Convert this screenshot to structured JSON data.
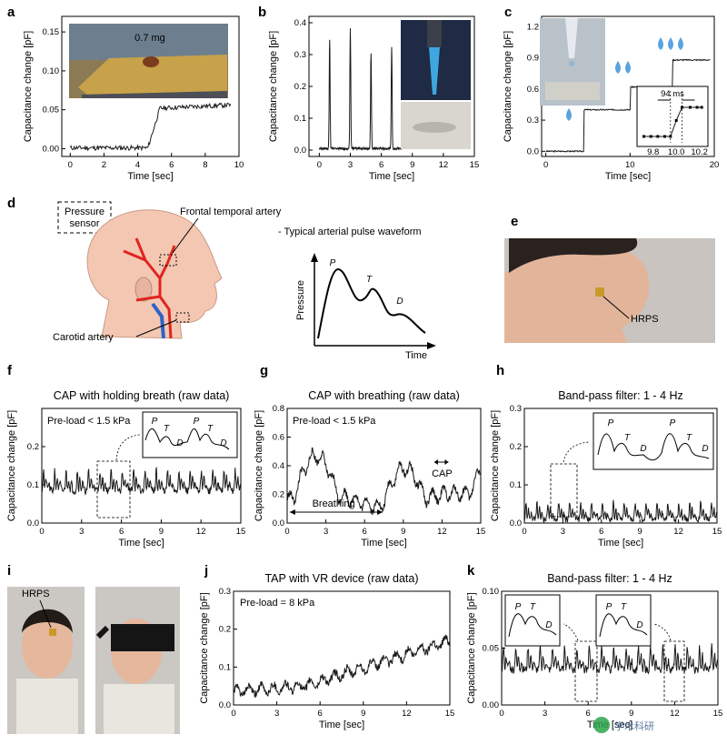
{
  "panels": {
    "a": {
      "label": "a",
      "photo_caption": "0.7 mg"
    },
    "b": {
      "label": "b"
    },
    "c": {
      "label": "c",
      "inset_caption": "94 ms"
    },
    "d": {
      "label": "d",
      "sensor_label": "Pressure\nsensor",
      "artery_top": "Frontal temporal artery",
      "artery_bottom": "Carotid artery",
      "waveform_title": "- Typical arterial pulse waveform",
      "peak_p": "P",
      "peak_t": "T",
      "peak_d": "D",
      "ylabel": "Pressure",
      "xlabel": "Time"
    },
    "e": {
      "label": "e",
      "sensor_label": "HRPS"
    },
    "f": {
      "label": "f"
    },
    "g": {
      "label": "g"
    },
    "h": {
      "label": "h"
    },
    "i": {
      "label": "i",
      "sensor_label": "HRPS"
    },
    "j": {
      "label": "j"
    },
    "k": {
      "label": "k"
    }
  },
  "watermark": "学术科研",
  "colors": {
    "trace": "#1a1a1a",
    "artery_red": "#e0241d",
    "vein_blue": "#2f63c8",
    "skin": "#f4c7b3"
  },
  "chart_data": [
    {
      "id": "a",
      "type": "line",
      "xlabel": "Time [sec]",
      "ylabel": "Capacitance change [pF]",
      "xlim": [
        -0.5,
        10
      ],
      "ylim": [
        -0.01,
        0.17
      ],
      "xticks": [
        "0",
        "2",
        "4",
        "6",
        "8",
        "10"
      ],
      "yticks": [
        "0.00",
        "0.05",
        "0.10",
        "0.15"
      ],
      "x": [
        0,
        1,
        2,
        3,
        4,
        4.6,
        4.9,
        5.2,
        5.6,
        6,
        7,
        8,
        9,
        9.5
      ],
      "y": [
        0,
        0,
        0.001,
        0,
        0.002,
        0.003,
        0.03,
        0.05,
        0.053,
        0.055,
        0.056,
        0.057,
        0.058,
        0.058
      ]
    },
    {
      "id": "b",
      "type": "line",
      "xlabel": "Time [sec]",
      "ylabel": "Capacitance change [pF]",
      "xlim": [
        -1,
        15
      ],
      "ylim": [
        -0.02,
        0.42
      ],
      "xticks": [
        "0",
        "3",
        "6",
        "9",
        "12",
        "15"
      ],
      "yticks": [
        "0.0",
        "0.1",
        "0.2",
        "0.3",
        "0.4"
      ],
      "x": [
        0,
        0.8,
        1,
        1.2,
        2.8,
        3,
        3.2,
        4.8,
        5,
        5.2,
        6.8,
        7,
        7.2,
        8
      ],
      "y": [
        0,
        0,
        0.34,
        0.01,
        0,
        0.38,
        0.01,
        0,
        0.3,
        0.01,
        0,
        0.32,
        0.01,
        0
      ]
    },
    {
      "id": "c",
      "type": "line",
      "xlabel": "Time [sec]",
      "ylabel": "Capacitance change [pF]",
      "xlim": [
        -0.5,
        20
      ],
      "ylim": [
        -0.05,
        1.3
      ],
      "xticks": [
        "0",
        "10",
        "20"
      ],
      "yticks": [
        "0.0",
        "0.3",
        "0.6",
        "0.9",
        "1.2"
      ],
      "x": [
        0,
        4.4,
        4.5,
        10,
        10.1,
        15,
        15.1,
        19.5
      ],
      "y": [
        0,
        0,
        0.4,
        0.4,
        0.62,
        0.62,
        0.88,
        0.88
      ],
      "inset": {
        "xticks": [
          "9.8",
          "10.0",
          "10.2"
        ],
        "x": [
          9.72,
          9.78,
          9.84,
          9.9,
          9.95,
          10.0,
          10.05,
          10.12,
          10.18,
          10.22
        ],
        "y": [
          0,
          0,
          0,
          0,
          0,
          0.55,
          1,
          1,
          1,
          1
        ]
      }
    },
    {
      "id": "f",
      "type": "line",
      "title": "CAP with holding breath (raw data)",
      "annotation": "Pre-load < 1.5 kPa",
      "xlabel": "Time [sec]",
      "ylabel": "Capacitance change [pF]",
      "xlim": [
        0,
        15
      ],
      "ylim": [
        0,
        0.3
      ],
      "xticks": [
        "0",
        "3",
        "6",
        "9",
        "12",
        "15"
      ],
      "yticks": [
        "0.0",
        "0.1",
        "0.2"
      ],
      "pulse": {
        "mean": 0.11,
        "amp": 0.055,
        "period": 0.85
      }
    },
    {
      "id": "g",
      "type": "line",
      "title": "CAP with breathing (raw data)",
      "annotation": "Pre-load < 1.5 kPa",
      "label_breathing": "Breathing",
      "label_cap": "CAP",
      "xlabel": "Time [sec]",
      "ylabel": "Capacitance change [pF]",
      "xlim": [
        0,
        15
      ],
      "ylim": [
        0,
        0.8
      ],
      "xticks": [
        "0",
        "3",
        "6",
        "9",
        "12",
        "15"
      ],
      "yticks": [
        "0.0",
        "0.2",
        "0.4",
        "0.6",
        "0.8"
      ]
    },
    {
      "id": "h",
      "type": "line",
      "title": "Band-pass filter: 1 - 4 Hz",
      "xlabel": "Time [sec]",
      "ylabel": "Capacitance change [pF]",
      "xlim": [
        0,
        15
      ],
      "ylim": [
        0,
        0.3
      ],
      "xticks": [
        "0",
        "3",
        "6",
        "9",
        "12",
        "15"
      ],
      "yticks": [
        "0.0",
        "0.1",
        "0.2",
        "0.3"
      ],
      "pulse": {
        "mean": 0.03,
        "amp": 0.045,
        "period": 0.85
      }
    },
    {
      "id": "j",
      "type": "line",
      "title": "TAP with VR device (raw data)",
      "annotation": "Pre-load = 8 kPa",
      "xlabel": "Time [sec]",
      "ylabel": "Capacitance change [pF]",
      "xlim": [
        0,
        15
      ],
      "ylim": [
        0,
        0.3
      ],
      "xticks": [
        "0",
        "3",
        "6",
        "9",
        "12",
        "15"
      ],
      "yticks": [
        "0.0",
        "0.1",
        "0.2",
        "0.3"
      ]
    },
    {
      "id": "k",
      "type": "line",
      "title": "Band-pass filter: 1 - 4 Hz",
      "xlabel": "Time [sec]",
      "ylabel": "Capacitance change [pF]",
      "xlim": [
        0,
        15
      ],
      "ylim": [
        0,
        0.1
      ],
      "xticks": [
        "0",
        "3",
        "6",
        "9",
        "12",
        "15"
      ],
      "yticks": [
        "0.00",
        "0.05",
        "0.10"
      ],
      "pulse": {
        "mean": 0.04,
        "amp": 0.02,
        "period": 0.85
      }
    }
  ]
}
